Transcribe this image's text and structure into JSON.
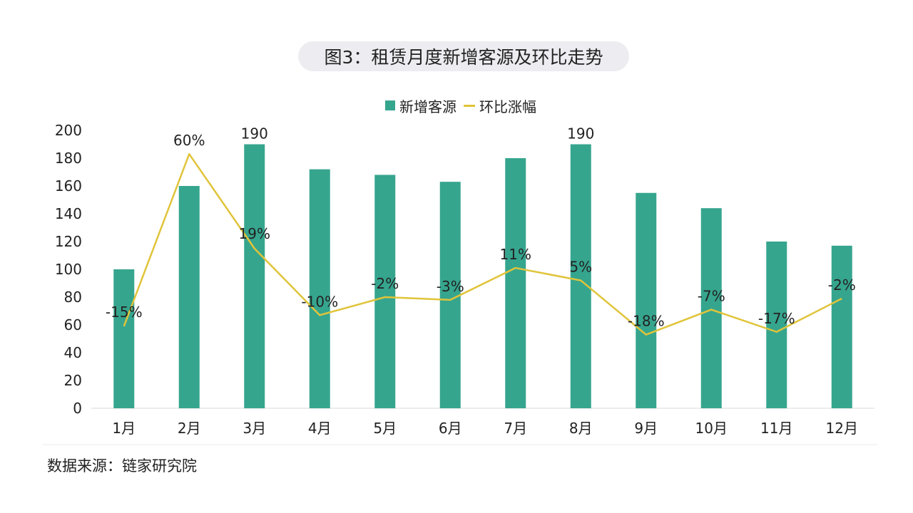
{
  "title": "图3：租赁月度新增客源及环比走势",
  "source": "数据来源：链家研究院",
  "colors": {
    "bar": "#36a58e",
    "line": "#e0c43a",
    "axis": "#d9d9d9",
    "text": "#222222"
  },
  "chart_data": {
    "type": "bar",
    "categories": [
      "1月",
      "2月",
      "3月",
      "4月",
      "5月",
      "6月",
      "7月",
      "8月",
      "9月",
      "10月",
      "11月",
      "12月"
    ],
    "series": [
      {
        "name": "新增客源",
        "type": "bar",
        "values": [
          100,
          160,
          190,
          172,
          168,
          163,
          180,
          190,
          155,
          144,
          120,
          117
        ]
      },
      {
        "name": "环比涨幅",
        "type": "line",
        "values": [
          -15,
          60,
          19,
          -10,
          -2,
          -3,
          11,
          5,
          -18,
          -7,
          -17,
          -2
        ],
        "labels": [
          "-15%",
          "60%",
          "19%",
          "-10%",
          "-2%",
          "-3%",
          "11%",
          "5%",
          "-18%",
          "-7%",
          "-17%",
          "-2%"
        ],
        "plot_positions": [
          59,
          183,
          115,
          67,
          80,
          78,
          101,
          92,
          53,
          71,
          55,
          79
        ]
      }
    ],
    "bar_value_labels": [
      "",
      "",
      "190",
      "",
      "",
      "",
      "",
      "190",
      "",
      "",
      "",
      ""
    ],
    "yticks": [
      0,
      20,
      40,
      60,
      80,
      100,
      120,
      140,
      160,
      180,
      200
    ],
    "ylim": [
      0,
      200
    ],
    "grid": false,
    "legend": "top-center"
  }
}
